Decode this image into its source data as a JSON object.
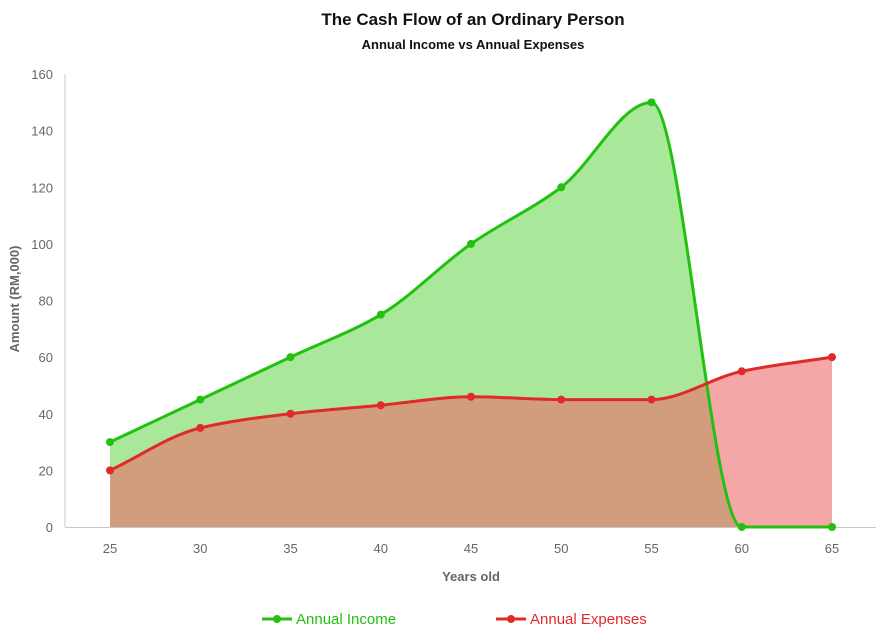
{
  "chart_data": {
    "type": "area",
    "title": "The Cash Flow of an Ordinary Person",
    "subtitle": "Annual Income vs Annual Expenses",
    "xlabel": "Years old",
    "ylabel": "Amount (RM,000)",
    "x": [
      25,
      30,
      35,
      40,
      45,
      50,
      55,
      60,
      65
    ],
    "ylim": [
      0,
      160
    ],
    "yticks": [
      0,
      20,
      40,
      60,
      80,
      100,
      120,
      140,
      160
    ],
    "grid": false,
    "legend_position": "bottom",
    "series": [
      {
        "name": "Annual Income",
        "values": [
          30,
          45,
          60,
          75,
          100,
          120,
          150,
          0,
          0
        ],
        "color": "#22c111",
        "fill": "#6fd957"
      },
      {
        "name": "Annual Expenses",
        "values": [
          20,
          35,
          40,
          43,
          46,
          45,
          45,
          55,
          60
        ],
        "color": "#e02a2a",
        "fill": "#ee6a6a"
      }
    ]
  }
}
